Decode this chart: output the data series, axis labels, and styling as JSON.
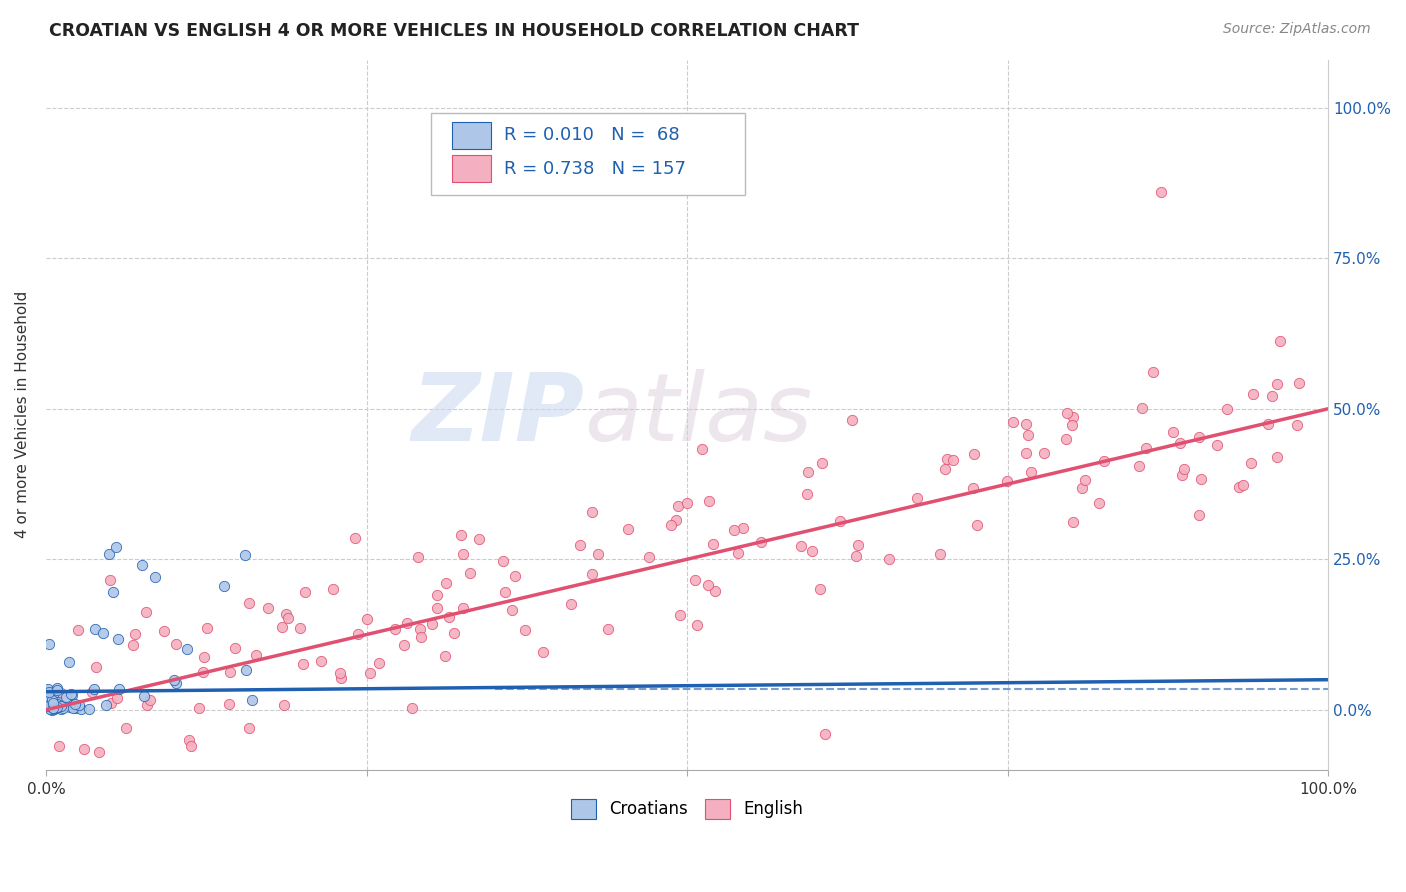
{
  "title": "CROATIAN VS ENGLISH 4 OR MORE VEHICLES IN HOUSEHOLD CORRELATION CHART",
  "source": "Source: ZipAtlas.com",
  "ylabel": "4 or more Vehicles in Household",
  "croatian_color": "#aec6e8",
  "croatian_line_color": "#2060b0",
  "english_color": "#f4b0c0",
  "english_line_color": "#e05070",
  "watermark_zip": "ZIP",
  "watermark_atlas": "atlas",
  "legend_text_color": "#2060b0",
  "right_tick_color": "#2060b0",
  "grid_color": "#cccccc",
  "background_color": "#ffffff",
  "title_fontsize": 12.5,
  "source_fontsize": 10,
  "axis_label_fontsize": 11,
  "tick_fontsize": 11,
  "legend_fontsize": 13,
  "cro_seed": 77,
  "eng_seed": 42,
  "n_croatian": 68,
  "n_english": 157,
  "ytick_vals": [
    0,
    25,
    50,
    75,
    100
  ],
  "ytick_labels": [
    "0.0%",
    "25.0%",
    "50.0%",
    "75.0%",
    "100.0%"
  ],
  "xtick_left_label": "0.0%",
  "xtick_right_label": "100.0%"
}
